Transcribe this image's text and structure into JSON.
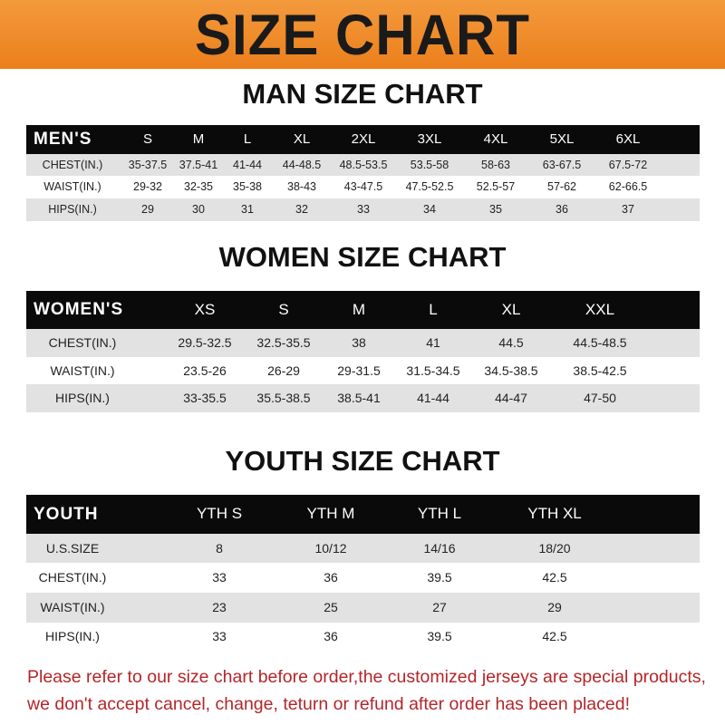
{
  "title": "SIZE CHART",
  "colors": {
    "banner": "#ee8a25",
    "header": "#0a0a0a",
    "stripe": "#e2e2e2",
    "note": "#b3262a"
  },
  "men": {
    "title": "MAN SIZE CHART",
    "header": "MEN'S",
    "sizes": [
      "S",
      "M",
      "L",
      "XL",
      "2XL",
      "3XL",
      "4XL",
      "5XL",
      "6XL"
    ],
    "rows": [
      {
        "label": "CHEST(IN.)",
        "values": [
          "35-37.5",
          "37.5-41",
          "41-44",
          "44-48.5",
          "48.5-53.5",
          "53.5-58",
          "58-63",
          "63-67.5",
          "67.5-72"
        ]
      },
      {
        "label": "WAIST(IN.)",
        "values": [
          "29-32",
          "32-35",
          "35-38",
          "38-43",
          "43-47.5",
          "47.5-52.5",
          "52.5-57",
          "57-62",
          "62-66.5"
        ]
      },
      {
        "label": "HIPS(IN.)",
        "values": [
          "29",
          "30",
          "31",
          "32",
          "33",
          "34",
          "35",
          "36",
          "37"
        ]
      }
    ]
  },
  "women": {
    "title": "WOMEN SIZE CHART",
    "header": "WOMEN'S",
    "sizes": [
      "XS",
      "S",
      "M",
      "L",
      "XL",
      "XXL"
    ],
    "rows": [
      {
        "label": "CHEST(IN.)",
        "values": [
          "29.5-32.5",
          "32.5-35.5",
          "38",
          "41",
          "44.5",
          "44.5-48.5"
        ]
      },
      {
        "label": "WAIST(IN.)",
        "values": [
          "23.5-26",
          "26-29",
          "29-31.5",
          "31.5-34.5",
          "34.5-38.5",
          "38.5-42.5"
        ]
      },
      {
        "label": "HIPS(IN.)",
        "values": [
          "33-35.5",
          "35.5-38.5",
          "38.5-41",
          "41-44",
          "44-47",
          "47-50"
        ]
      }
    ]
  },
  "youth": {
    "title": "YOUTH SIZE CHART",
    "header": "YOUTH",
    "sizes": [
      "YTH S",
      "YTH M",
      "YTH L",
      "YTH XL"
    ],
    "rows": [
      {
        "label": "U.S.SIZE",
        "values": [
          "8",
          "10/12",
          "14/16",
          "18/20"
        ]
      },
      {
        "label": "CHEST(IN.)",
        "values": [
          "33",
          "36",
          "39.5",
          "42.5"
        ]
      },
      {
        "label": "WAIST(IN.)",
        "values": [
          "23",
          "25",
          "27",
          "29"
        ]
      },
      {
        "label": "HIPS(IN.)",
        "values": [
          "33",
          "36",
          "39.5",
          "42.5"
        ]
      }
    ]
  },
  "note": {
    "line1": "Please refer to our size chart before order,the customized jerseys are special products,",
    "line2": "we don't accept cancel, change, teturn or refund after order has been placed!"
  }
}
